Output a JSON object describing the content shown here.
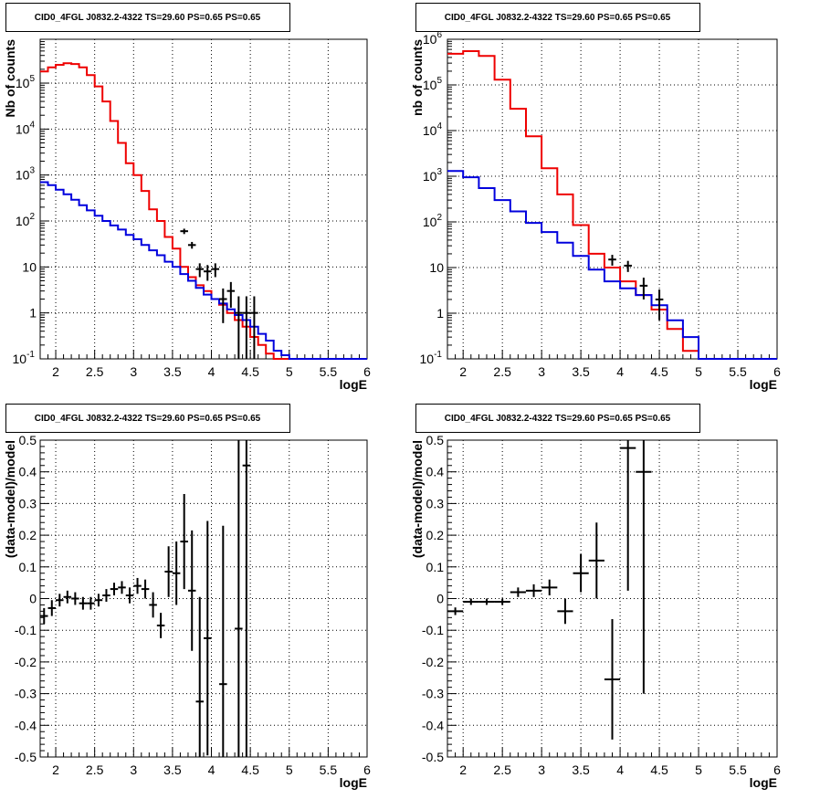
{
  "chart_data": [
    {
      "type": "step-histogram",
      "title": "CID0_4FGL J0832.2-4322 TS=29.60 PS=0.65 PS=0.65",
      "xlabel": "logE",
      "ylabel": "Nb of counts",
      "xlim": [
        1.8,
        6.0
      ],
      "ylim": [
        0.1,
        900000
      ],
      "yscale": "log",
      "grid": true,
      "xticks": [
        "2",
        "2.5",
        "3",
        "3.5",
        "4",
        "4.5",
        "5",
        "5.5",
        "6"
      ],
      "yticks": [
        "10^-1",
        "1",
        "10",
        "10^2",
        "10^3",
        "10^4",
        "10^5"
      ],
      "bin_edges": [
        1.8,
        1.9,
        2.0,
        2.1,
        2.2,
        2.3,
        2.4,
        2.5,
        2.6,
        2.7,
        2.8,
        2.9,
        3.0,
        3.1,
        3.2,
        3.3,
        3.4,
        3.5,
        3.6,
        3.7,
        3.8,
        3.9,
        4.0,
        4.1,
        4.2,
        4.3,
        4.4,
        4.5,
        4.6,
        4.7,
        4.8,
        4.9,
        5.0,
        5.1,
        5.2,
        5.3,
        5.4,
        5.5,
        5.6,
        5.7,
        5.8,
        5.9,
        6.0
      ],
      "series": [
        {
          "color": "#ee0000",
          "values": [
            180000,
            220000,
            250000,
            270000,
            260000,
            220000,
            150000,
            85000,
            40000,
            15000,
            5000,
            1800,
            1000,
            450,
            180,
            100,
            45,
            25,
            10,
            6,
            4,
            3,
            2,
            1.5,
            1,
            0.7,
            0.5,
            0.3,
            0.2,
            0.13,
            0.1,
            0.1,
            0.1,
            0.1,
            0.1,
            0.1,
            0.1,
            0.1,
            0.1,
            0.1,
            0.1,
            0.1
          ]
        },
        {
          "color": "#0000dd",
          "values": [
            700,
            600,
            480,
            380,
            290,
            220,
            170,
            130,
            100,
            80,
            65,
            50,
            40,
            30,
            23,
            18,
            13,
            10,
            7,
            5,
            3.5,
            2.5,
            2,
            1.6,
            1.2,
            0.9,
            0.7,
            0.5,
            0.35,
            0.25,
            0.15,
            0.12,
            0.1,
            0.1,
            0.1,
            0.1,
            0.1,
            0.1,
            0.1,
            0.1,
            0.1,
            0.1
          ]
        }
      ],
      "points": [
        {
          "x": 3.65,
          "y": 60,
          "yerr": [
            8,
            8
          ]
        },
        {
          "x": 3.75,
          "y": 30,
          "yerr": [
            5,
            5
          ]
        },
        {
          "x": 3.85,
          "y": 9,
          "yerr": [
            3,
            3
          ]
        },
        {
          "x": 3.95,
          "y": 8,
          "yerr": [
            3,
            3
          ]
        },
        {
          "x": 4.05,
          "y": 9,
          "yerr": [
            3,
            3
          ]
        },
        {
          "x": 4.15,
          "y": 2,
          "yerr": [
            1.4,
            1.4
          ]
        },
        {
          "x": 4.25,
          "y": 3,
          "yerr": [
            1.7,
            1.7
          ]
        },
        {
          "x": 4.35,
          "y": 1,
          "yerr": [
            0.9,
            1.3
          ]
        },
        {
          "x": 4.45,
          "y": 1,
          "yerr": [
            0.9,
            1.3
          ]
        },
        {
          "x": 4.55,
          "y": 1,
          "yerr": [
            0.9,
            1.3
          ]
        }
      ]
    },
    {
      "type": "step-histogram",
      "title": "CID0_4FGL J0832.2-4322 TS=29.60 PS=0.65 PS=0.65",
      "xlabel": "logE",
      "ylabel": "nb of counts",
      "xlim": [
        1.8,
        6.0
      ],
      "ylim": [
        0.1,
        1000000
      ],
      "yscale": "log",
      "grid": true,
      "xticks": [
        "2",
        "2.5",
        "3",
        "3.5",
        "4",
        "4.5",
        "5",
        "5.5",
        "6"
      ],
      "yticks": [
        "10^-1",
        "1",
        "10",
        "10^2",
        "10^3",
        "10^4",
        "10^5",
        "10^6"
      ],
      "bin_edges": [
        1.8,
        2.0,
        2.2,
        2.4,
        2.6,
        2.8,
        3.0,
        3.2,
        3.4,
        3.6,
        3.8,
        4.0,
        4.2,
        4.4,
        4.6,
        4.8,
        5.0,
        5.2,
        5.4,
        5.6,
        5.8,
        6.0
      ],
      "series": [
        {
          "color": "#ee0000",
          "values": [
            480000,
            550000,
            430000,
            130000,
            30000,
            7500,
            1500,
            400,
            85,
            20,
            10,
            5,
            2.5,
            1.2,
            0.45,
            0.15,
            0.1,
            0.1,
            0.1,
            0.1,
            0.1
          ]
        },
        {
          "color": "#0000dd",
          "values": [
            1300,
            950,
            550,
            300,
            170,
            95,
            60,
            35,
            18,
            9,
            5,
            3.5,
            2.5,
            1.5,
            0.7,
            0.3,
            0.1,
            0.1,
            0.1,
            0.1,
            0.1
          ]
        }
      ],
      "points": [
        {
          "x": 3.9,
          "y": 15,
          "yerr": [
            4,
            4
          ]
        },
        {
          "x": 4.1,
          "y": 11,
          "yerr": [
            3,
            3
          ]
        },
        {
          "x": 4.3,
          "y": 4,
          "yerr": [
            2,
            2
          ]
        },
        {
          "x": 4.5,
          "y": 2,
          "yerr": [
            1.3,
            1.3
          ]
        }
      ]
    },
    {
      "type": "errorbar",
      "title": "CID0_4FGL J0832.2-4322 TS=29.60 PS=0.65 PS=0.65",
      "xlabel": "logE",
      "ylabel": "(data-model)/model",
      "xlim": [
        1.8,
        6.0
      ],
      "ylim": [
        -0.5,
        0.5
      ],
      "grid": true,
      "xticks": [
        "2",
        "2.5",
        "3",
        "3.5",
        "4",
        "4.5",
        "5",
        "5.5",
        "6"
      ],
      "yticks": [
        "-0.5",
        "-0.4",
        "-0.3",
        "-0.2",
        "-0.1",
        "0",
        "0.1",
        "0.2",
        "0.3",
        "0.4",
        "0.5"
      ],
      "xhalfwidth": 0.05,
      "points": [
        {
          "x": 1.85,
          "y": -0.055,
          "err": 0.025
        },
        {
          "x": 1.95,
          "y": -0.03,
          "err": 0.025
        },
        {
          "x": 2.05,
          "y": -0.005,
          "err": 0.02
        },
        {
          "x": 2.15,
          "y": 0.005,
          "err": 0.02
        },
        {
          "x": 2.25,
          "y": 0.0,
          "err": 0.02
        },
        {
          "x": 2.35,
          "y": -0.015,
          "err": 0.02
        },
        {
          "x": 2.45,
          "y": -0.015,
          "err": 0.02
        },
        {
          "x": 2.55,
          "y": -0.005,
          "err": 0.02
        },
        {
          "x": 2.65,
          "y": 0.01,
          "err": 0.02
        },
        {
          "x": 2.75,
          "y": 0.03,
          "err": 0.02
        },
        {
          "x": 2.85,
          "y": 0.035,
          "err": 0.02
        },
        {
          "x": 2.95,
          "y": 0.01,
          "err": 0.025
        },
        {
          "x": 3.05,
          "y": 0.04,
          "err": 0.025
        },
        {
          "x": 3.15,
          "y": 0.03,
          "err": 0.03
        },
        {
          "x": 3.25,
          "y": -0.02,
          "err": 0.04
        },
        {
          "x": 3.35,
          "y": -0.085,
          "err": 0.04
        },
        {
          "x": 3.45,
          "y": 0.085,
          "err": 0.08
        },
        {
          "x": 3.55,
          "y": 0.08,
          "err": 0.1
        },
        {
          "x": 3.65,
          "y": 0.18,
          "err": 0.15
        },
        {
          "x": 3.75,
          "y": 0.025,
          "err": 0.19
        },
        {
          "x": 3.85,
          "y": -0.325,
          "err": 0.33
        },
        {
          "x": 3.95,
          "y": -0.125,
          "err": 0.37
        },
        {
          "x": 4.15,
          "y": -0.27,
          "err": 0.5
        },
        {
          "x": 4.35,
          "y": -0.095,
          "err": 0.75
        },
        {
          "x": 4.45,
          "y": 0.42,
          "err": 0.95
        }
      ]
    },
    {
      "type": "errorbar",
      "title": "CID0_4FGL J0832.2-4322 TS=29.60 PS=0.65 PS=0.65",
      "xlabel": "logE",
      "ylabel": "(data-model)/model",
      "xlim": [
        1.8,
        6.0
      ],
      "ylim": [
        -0.5,
        0.5
      ],
      "grid": true,
      "xticks": [
        "2",
        "2.5",
        "3",
        "3.5",
        "4",
        "4.5",
        "5",
        "5.5",
        "6"
      ],
      "yticks": [
        "-0.5",
        "-0.4",
        "-0.3",
        "-0.2",
        "-0.1",
        "0",
        "0.1",
        "0.2",
        "0.3",
        "0.4",
        "0.5"
      ],
      "xhalfwidth": 0.1,
      "points": [
        {
          "x": 1.9,
          "y": -0.04,
          "err": 0.012
        },
        {
          "x": 2.1,
          "y": -0.01,
          "err": 0.01
        },
        {
          "x": 2.3,
          "y": -0.01,
          "err": 0.01
        },
        {
          "x": 2.5,
          "y": -0.01,
          "err": 0.01
        },
        {
          "x": 2.7,
          "y": 0.02,
          "err": 0.015
        },
        {
          "x": 2.9,
          "y": 0.025,
          "err": 0.02
        },
        {
          "x": 3.1,
          "y": 0.035,
          "err": 0.025
        },
        {
          "x": 3.3,
          "y": -0.04,
          "err": 0.04
        },
        {
          "x": 3.5,
          "y": 0.08,
          "err": 0.06
        },
        {
          "x": 3.7,
          "y": 0.12,
          "err": 0.12
        },
        {
          "x": 3.9,
          "y": -0.255,
          "err": 0.19
        },
        {
          "x": 4.1,
          "y": 0.475,
          "err": 0.45
        },
        {
          "x": 4.3,
          "y": 0.4,
          "err": 0.7
        }
      ]
    }
  ]
}
